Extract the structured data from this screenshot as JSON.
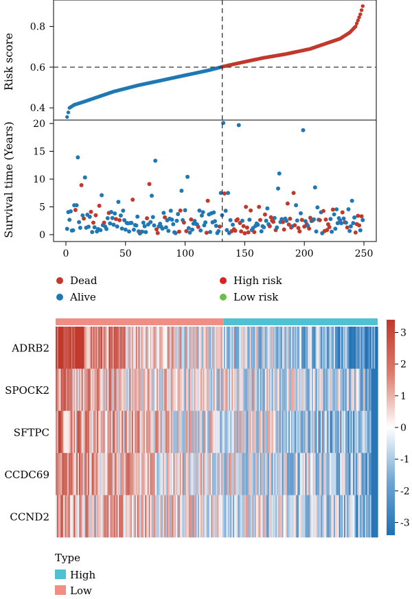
{
  "chart_data": [
    {
      "type": "scatter",
      "ylabel": "Risk score",
      "xlim": [
        0,
        250
      ],
      "ylim": [
        0.34,
        0.93
      ],
      "yticks": [
        0.4,
        0.6,
        0.8
      ],
      "cutoff_x": 130,
      "cutoff_y": 0.6,
      "n": 249,
      "risk_curve": [
        [
          1,
          0.355
        ],
        [
          3,
          0.4
        ],
        [
          7,
          0.415
        ],
        [
          15,
          0.43
        ],
        [
          25,
          0.45
        ],
        [
          40,
          0.48
        ],
        [
          60,
          0.51
        ],
        [
          80,
          0.535
        ],
        [
          100,
          0.56
        ],
        [
          120,
          0.585
        ],
        [
          130,
          0.6
        ],
        [
          131,
          0.602
        ],
        [
          145,
          0.62
        ],
        [
          165,
          0.645
        ],
        [
          185,
          0.665
        ],
        [
          205,
          0.69
        ],
        [
          220,
          0.72
        ],
        [
          230,
          0.74
        ],
        [
          238,
          0.77
        ],
        [
          243,
          0.8
        ],
        [
          247,
          0.86
        ],
        [
          249,
          0.9
        ]
      ],
      "series": [
        {
          "name": "Low risk",
          "color": "#1f78b4",
          "range": [
            1,
            130
          ]
        },
        {
          "name": "High risk",
          "color": "#c0392b",
          "range": [
            131,
            249
          ]
        }
      ]
    },
    {
      "type": "scatter",
      "ylabel": "Survival time (Years)",
      "xlim": [
        0,
        250
      ],
      "ylim": [
        0,
        20
      ],
      "xticks": [
        0,
        50,
        100,
        150,
        200,
        250
      ],
      "yticks": [
        0,
        5,
        10,
        15,
        20
      ],
      "cutoff_x": 130,
      "notable_points": [
        {
          "x": 10,
          "y": 13.9,
          "status": "Alive"
        },
        {
          "x": 13,
          "y": 8.9,
          "status": "Dead"
        },
        {
          "x": 16,
          "y": 10.3,
          "status": "Alive"
        },
        {
          "x": 7,
          "y": 5.3,
          "status": "Alive"
        },
        {
          "x": 9,
          "y": 5.3,
          "status": "Alive"
        },
        {
          "x": 30,
          "y": 7.1,
          "status": "Alive"
        },
        {
          "x": 28,
          "y": 5.2,
          "status": "Dead"
        },
        {
          "x": 44,
          "y": 5.9,
          "status": "Alive"
        },
        {
          "x": 56,
          "y": 6.3,
          "status": "Dead"
        },
        {
          "x": 70,
          "y": 9.1,
          "status": "Dead"
        },
        {
          "x": 72,
          "y": 7.0,
          "status": "Alive"
        },
        {
          "x": 75,
          "y": 13.3,
          "status": "Alive"
        },
        {
          "x": 97,
          "y": 7.9,
          "status": "Alive"
        },
        {
          "x": 102,
          "y": 10.4,
          "status": "Alive"
        },
        {
          "x": 119,
          "y": 6.1,
          "status": "Dead"
        },
        {
          "x": 130,
          "y": 7.5,
          "status": "Alive"
        },
        {
          "x": 132,
          "y": 20.1,
          "status": "Alive"
        },
        {
          "x": 133,
          "y": 7.4,
          "status": "Dead"
        },
        {
          "x": 136,
          "y": 7.5,
          "status": "Alive"
        },
        {
          "x": 145,
          "y": 19.7,
          "status": "Alive"
        },
        {
          "x": 151,
          "y": 5.0,
          "status": "Dead"
        },
        {
          "x": 162,
          "y": 5.0,
          "status": "Dead"
        },
        {
          "x": 178,
          "y": 8.3,
          "status": "Alive"
        },
        {
          "x": 179,
          "y": 11.0,
          "status": "Alive"
        },
        {
          "x": 186,
          "y": 5.6,
          "status": "Dead"
        },
        {
          "x": 191,
          "y": 7.5,
          "status": "Dead"
        },
        {
          "x": 193,
          "y": 5.3,
          "status": "Alive"
        },
        {
          "x": 199,
          "y": 18.8,
          "status": "Alive"
        },
        {
          "x": 209,
          "y": 8.5,
          "status": "Alive"
        },
        {
          "x": 211,
          "y": 4.9,
          "status": "Alive"
        },
        {
          "x": 224,
          "y": 4.5,
          "status": "Dead"
        },
        {
          "x": 240,
          "y": 6.1,
          "status": "Alive"
        },
        {
          "x": 245,
          "y": 3.4,
          "status": "Dead"
        },
        {
          "x": 248,
          "y": 3.3,
          "status": "Dead"
        }
      ],
      "legend": [
        {
          "name": "Dead",
          "color": "#c0392b"
        },
        {
          "name": "Alive",
          "color": "#1f78b4"
        },
        {
          "name": "High risk",
          "color": "#e02020"
        },
        {
          "name": "Low risk",
          "color": "#6abf45"
        }
      ]
    },
    {
      "type": "heatmap",
      "rows": [
        "ADRB2",
        "SPOCK2",
        "SFTPC",
        "CCDC69",
        "CCND2"
      ],
      "n_columns": 249,
      "group_split_column": 131,
      "colorbar_ticks": [
        3,
        2,
        1,
        0,
        -1,
        -2,
        -3
      ],
      "colorbar_range": [
        -3.4,
        3.4
      ],
      "colors": {
        "high": "#c0392b",
        "mid": "#ffffff",
        "low": "#1f6fb4"
      },
      "annotation": {
        "title": "Type",
        "entries": [
          {
            "name": "High",
            "color": "#4fc1d2"
          },
          {
            "name": "Low",
            "color": "#f08e85"
          }
        ]
      }
    }
  ]
}
